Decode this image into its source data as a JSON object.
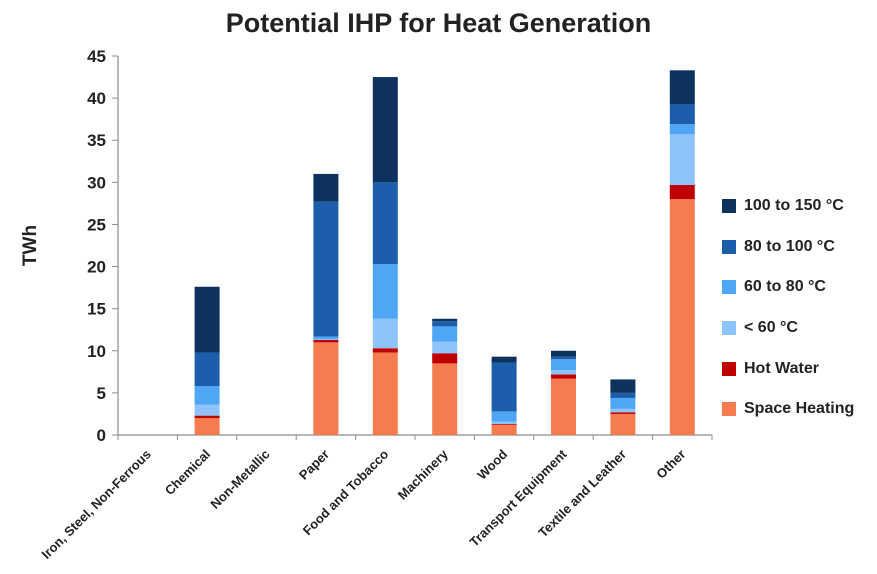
{
  "chart_data": {
    "type": "bar",
    "stacked": true,
    "title": "Potential IHP for Heat Generation",
    "xlabel": "",
    "ylabel": "TWh",
    "ylim": [
      0,
      45
    ],
    "yticks": [
      0,
      5,
      10,
      15,
      20,
      25,
      30,
      35,
      40,
      45
    ],
    "grid": false,
    "legend_position": "right",
    "categories": [
      "Iron, Steel, Non-Ferrous",
      "Chemical",
      "Non-Metallic",
      "Paper",
      "Food and Tobacco",
      "Machinery",
      "Wood",
      "Transport Equipment",
      "Textile and Leather",
      "Other"
    ],
    "series": [
      {
        "name": "Space Heating",
        "color": "#f47c4f",
        "values": [
          0,
          2.0,
          0,
          11.0,
          9.8,
          8.5,
          1.2,
          6.7,
          2.5,
          28.0
        ]
      },
      {
        "name": "Hot Water",
        "color": "#c00000",
        "values": [
          0,
          0.3,
          0,
          0.3,
          0.5,
          1.2,
          0.1,
          0.5,
          0.2,
          1.7
        ]
      },
      {
        "name": "< 60 °C",
        "color": "#8ec3fb",
        "values": [
          0,
          1.3,
          0,
          0.1,
          3.5,
          1.4,
          0.3,
          0.5,
          0.4,
          6.0
        ]
      },
      {
        "name": "60 to 80 °C",
        "color": "#4ea6f5",
        "values": [
          0,
          2.2,
          0,
          0.3,
          6.5,
          1.8,
          1.2,
          1.3,
          1.3,
          1.2
        ]
      },
      {
        "name": "80 to 100 °C",
        "color": "#1c5eab",
        "values": [
          0,
          4.0,
          0,
          16.0,
          9.7,
          0.6,
          5.8,
          0.3,
          0.6,
          2.4
        ]
      },
      {
        "name": "100 to 150 °C",
        "color": "#0e325e",
        "values": [
          0,
          7.8,
          0,
          3.3,
          12.5,
          0.3,
          0.7,
          0.7,
          1.6,
          4.0
        ]
      }
    ]
  }
}
